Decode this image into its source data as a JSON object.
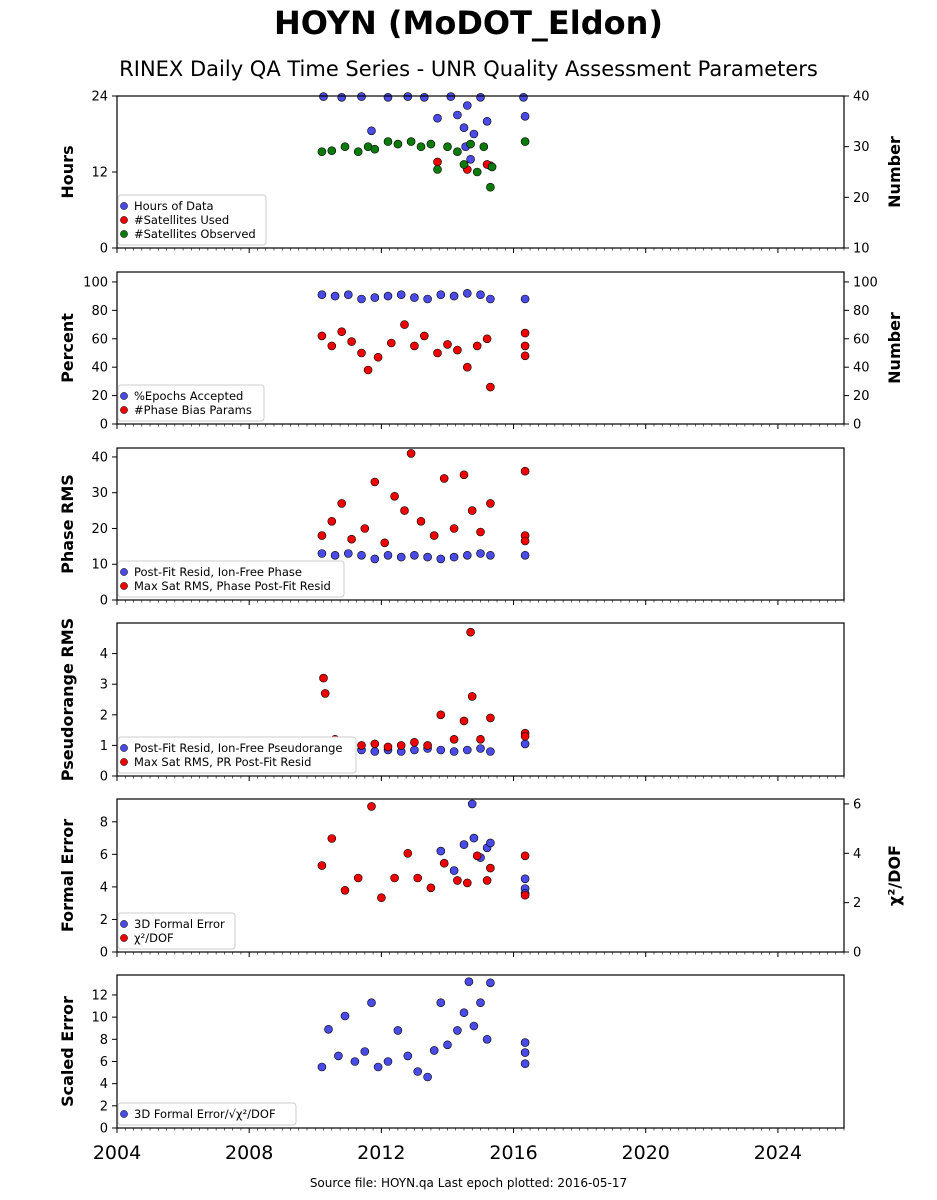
{
  "title": "HOYN (MoDOT_Eldon)",
  "subtitle": "RINEX Daily QA Time Series - UNR Quality Assessment Parameters",
  "footer": "Source file: HOYN.qa Last epoch plotted: 2016-05-17",
  "colors": {
    "blue": "#4a4ae6",
    "red": "#ee0000",
    "green": "#0a7a0a"
  },
  "chart_data": [
    {
      "type": "scatter",
      "ylabel": "Hours",
      "ylabel_right": "Number",
      "ylim": [
        0,
        24
      ],
      "yticks": [
        0,
        12,
        24
      ],
      "ylim_right": [
        10,
        40
      ],
      "yticks_right": [
        10,
        20,
        30,
        40
      ],
      "legend_location": "lower-left",
      "series": [
        {
          "name": "Hours of Data",
          "color": "blue",
          "axis": "left",
          "x": [
            2010.25,
            2010.8,
            2011.4,
            2011.7,
            2012.2,
            2012.8,
            2013.3,
            2013.7,
            2014.1,
            2014.3,
            2014.5,
            2014.55,
            2014.6,
            2014.7,
            2014.8,
            2015.0,
            2015.2,
            2015.3,
            2016.3,
            2016.35
          ],
          "y": [
            23.9,
            23.8,
            23.9,
            18.5,
            23.8,
            23.9,
            23.8,
            20.5,
            23.9,
            21.0,
            19.0,
            16.0,
            22.5,
            14.0,
            18.0,
            23.8,
            20.0,
            13.0,
            23.8,
            20.8
          ]
        },
        {
          "name": "#Satellites Used",
          "color": "red",
          "axis": "right",
          "x": [
            2013.7,
            2014.6,
            2015.2
          ],
          "y": [
            27.0,
            25.5,
            26.5
          ]
        },
        {
          "name": "#Satellites Observed",
          "color": "green",
          "axis": "right",
          "x": [
            2010.2,
            2010.5,
            2010.9,
            2011.3,
            2011.6,
            2011.8,
            2012.2,
            2012.5,
            2012.9,
            2013.2,
            2013.5,
            2013.7,
            2014.0,
            2014.3,
            2014.5,
            2014.7,
            2014.9,
            2015.1,
            2015.3,
            2015.35,
            2016.35
          ],
          "y": [
            29.0,
            29.2,
            30.0,
            29.0,
            30.0,
            29.5,
            31.0,
            30.5,
            31.0,
            30.0,
            30.5,
            25.5,
            30.0,
            29.0,
            26.5,
            30.5,
            25.0,
            30.0,
            22.0,
            26.0,
            31.0
          ]
        }
      ]
    },
    {
      "type": "scatter",
      "ylabel": "Percent",
      "ylabel_right": "Number",
      "ylim": [
        0,
        107
      ],
      "yticks": [
        0,
        20,
        40,
        60,
        80,
        100
      ],
      "ylim_right": [
        0,
        107
      ],
      "yticks_right": [
        0,
        20,
        40,
        60,
        80,
        100
      ],
      "legend_location": "lower-left",
      "series": [
        {
          "name": "%Epochs Accepted",
          "color": "blue",
          "axis": "left",
          "x": [
            2010.2,
            2010.6,
            2011.0,
            2011.4,
            2011.8,
            2012.2,
            2012.6,
            2013.0,
            2013.4,
            2013.8,
            2014.2,
            2014.6,
            2015.0,
            2015.3,
            2016.35
          ],
          "y": [
            91,
            90,
            91,
            88,
            89,
            90,
            91,
            89,
            88,
            91,
            90,
            92,
            91,
            88,
            88
          ]
        },
        {
          "name": "#Phase Bias Params",
          "color": "red",
          "axis": "right",
          "x": [
            2010.2,
            2010.5,
            2010.8,
            2011.1,
            2011.4,
            2011.6,
            2011.9,
            2012.3,
            2012.7,
            2013.0,
            2013.3,
            2013.7,
            2014.0,
            2014.3,
            2014.6,
            2014.9,
            2015.2,
            2015.3,
            2016.35,
            2016.35,
            2016.35
          ],
          "y": [
            62,
            55,
            65,
            58,
            50,
            38,
            47,
            57,
            70,
            55,
            62,
            50,
            56,
            52,
            40,
            55,
            60,
            26,
            64,
            55,
            48
          ]
        }
      ]
    },
    {
      "type": "scatter",
      "ylabel": "Phase RMS",
      "ylim": [
        0,
        42.5
      ],
      "yticks": [
        0,
        10,
        20,
        30,
        40
      ],
      "legend_location": "lower-left",
      "series": [
        {
          "name": "Post-Fit Resid, Ion-Free Phase",
          "color": "blue",
          "axis": "left",
          "x": [
            2010.2,
            2010.6,
            2011.0,
            2011.4,
            2011.8,
            2012.2,
            2012.6,
            2013.0,
            2013.4,
            2013.8,
            2014.2,
            2014.6,
            2015.0,
            2015.3,
            2016.35
          ],
          "y": [
            13.0,
            12.5,
            13.0,
            12.5,
            11.5,
            12.5,
            12.0,
            12.5,
            12.0,
            11.5,
            12.0,
            12.5,
            13.0,
            12.5,
            12.5
          ]
        },
        {
          "name": "Max Sat RMS, Phase Post-Fit Resid",
          "color": "red",
          "axis": "left",
          "x": [
            2010.2,
            2010.5,
            2010.8,
            2011.1,
            2011.5,
            2011.8,
            2012.1,
            2012.4,
            2012.7,
            2012.9,
            2013.2,
            2013.6,
            2013.9,
            2014.2,
            2014.5,
            2014.75,
            2015.0,
            2015.3,
            2016.35,
            2016.35,
            2016.35
          ],
          "y": [
            18,
            22,
            27,
            17,
            20,
            33,
            16,
            29,
            25,
            41,
            22,
            18,
            34,
            20,
            35,
            25,
            19,
            27,
            36,
            18,
            16.5
          ]
        }
      ]
    },
    {
      "type": "scatter",
      "ylabel": "Pseudorange RMS",
      "ylim": [
        0,
        5
      ],
      "yticks": [
        0,
        1,
        2,
        3,
        4
      ],
      "legend_location": "lower-left",
      "series": [
        {
          "name": "Post-Fit Resid, Ion-Free Pseudorange",
          "color": "blue",
          "axis": "left",
          "x": [
            2010.2,
            2010.6,
            2011.0,
            2011.4,
            2011.8,
            2012.2,
            2012.6,
            2013.0,
            2013.4,
            2013.8,
            2014.2,
            2014.6,
            2015.0,
            2015.3,
            2016.35
          ],
          "y": [
            1.0,
            0.95,
            0.9,
            0.85,
            0.8,
            0.85,
            0.8,
            0.85,
            0.9,
            0.85,
            0.8,
            0.85,
            0.9,
            0.8,
            1.05
          ]
        },
        {
          "name": "Max Sat RMS, PR Post-Fit Resid",
          "color": "red",
          "axis": "left",
          "x": [
            2010.25,
            2010.3,
            2010.6,
            2011.0,
            2011.4,
            2011.8,
            2012.2,
            2012.6,
            2013.0,
            2013.4,
            2013.8,
            2014.2,
            2014.5,
            2014.7,
            2014.75,
            2015.0,
            2015.3,
            2016.35,
            2016.35
          ],
          "y": [
            3.2,
            2.7,
            1.2,
            1.1,
            1.0,
            1.05,
            0.95,
            1.0,
            1.1,
            1.0,
            2.0,
            1.2,
            1.8,
            4.7,
            2.6,
            1.2,
            1.9,
            1.4,
            1.3
          ]
        }
      ]
    },
    {
      "type": "scatter",
      "ylabel": "Formal Error",
      "ylabel_right": "χ²/DOF",
      "ylim": [
        0,
        9.4
      ],
      "yticks": [
        0,
        2,
        4,
        6,
        8
      ],
      "ylim_right": [
        0,
        6.2
      ],
      "yticks_right": [
        0,
        2,
        4,
        6
      ],
      "legend_location": "lower-left",
      "series": [
        {
          "name": "3D Formal Error",
          "color": "blue",
          "axis": "left",
          "x": [
            2013.8,
            2014.2,
            2014.5,
            2014.75,
            2014.8,
            2015.0,
            2015.2,
            2015.3,
            2016.35,
            2016.35,
            2016.35
          ],
          "y": [
            6.2,
            5.0,
            6.6,
            9.1,
            7.0,
            5.8,
            6.4,
            6.7,
            4.5,
            3.9,
            3.6
          ]
        },
        {
          "name": "χ²/DOF",
          "color": "red",
          "axis": "right",
          "x": [
            2010.2,
            2010.5,
            2010.9,
            2011.3,
            2011.7,
            2012.0,
            2012.4,
            2012.8,
            2013.1,
            2013.5,
            2013.9,
            2014.3,
            2014.6,
            2014.9,
            2015.2,
            2015.3,
            2016.35,
            2016.35
          ],
          "y": [
            3.5,
            4.6,
            2.5,
            3.0,
            5.9,
            2.2,
            3.0,
            4.0,
            3.0,
            2.6,
            3.6,
            2.9,
            2.8,
            3.9,
            2.9,
            3.4,
            3.9,
            2.3
          ]
        }
      ]
    },
    {
      "type": "scatter",
      "ylabel": "Scaled Error",
      "ylim": [
        0,
        13.8
      ],
      "yticks": [
        0,
        2,
        4,
        6,
        8,
        10,
        12
      ],
      "legend_location": "lower-left",
      "series": [
        {
          "name": "3D Formal Error/√χ²/DOF",
          "color": "blue",
          "axis": "left",
          "x": [
            2010.2,
            2010.4,
            2010.7,
            2010.9,
            2011.2,
            2011.5,
            2011.7,
            2011.9,
            2012.2,
            2012.5,
            2012.8,
            2013.1,
            2013.4,
            2013.6,
            2013.8,
            2014.0,
            2014.3,
            2014.5,
            2014.65,
            2014.8,
            2015.0,
            2015.2,
            2015.3,
            2016.35,
            2016.35,
            2016.35
          ],
          "y": [
            5.5,
            8.9,
            6.5,
            10.1,
            6.0,
            6.9,
            11.3,
            5.5,
            6.0,
            8.8,
            6.5,
            5.1,
            4.6,
            7.0,
            11.3,
            7.5,
            8.8,
            10.4,
            13.2,
            9.2,
            11.3,
            8.0,
            13.1,
            7.7,
            6.8,
            5.8
          ]
        }
      ]
    }
  ],
  "x_axis": {
    "type": "date",
    "xlim": [
      2004,
      2026
    ],
    "ticks": [
      2004,
      2008,
      2012,
      2016,
      2020,
      2024
    ],
    "tick_labels": [
      "2004",
      "2008",
      "2012",
      "2016",
      "2020",
      "2024"
    ]
  }
}
